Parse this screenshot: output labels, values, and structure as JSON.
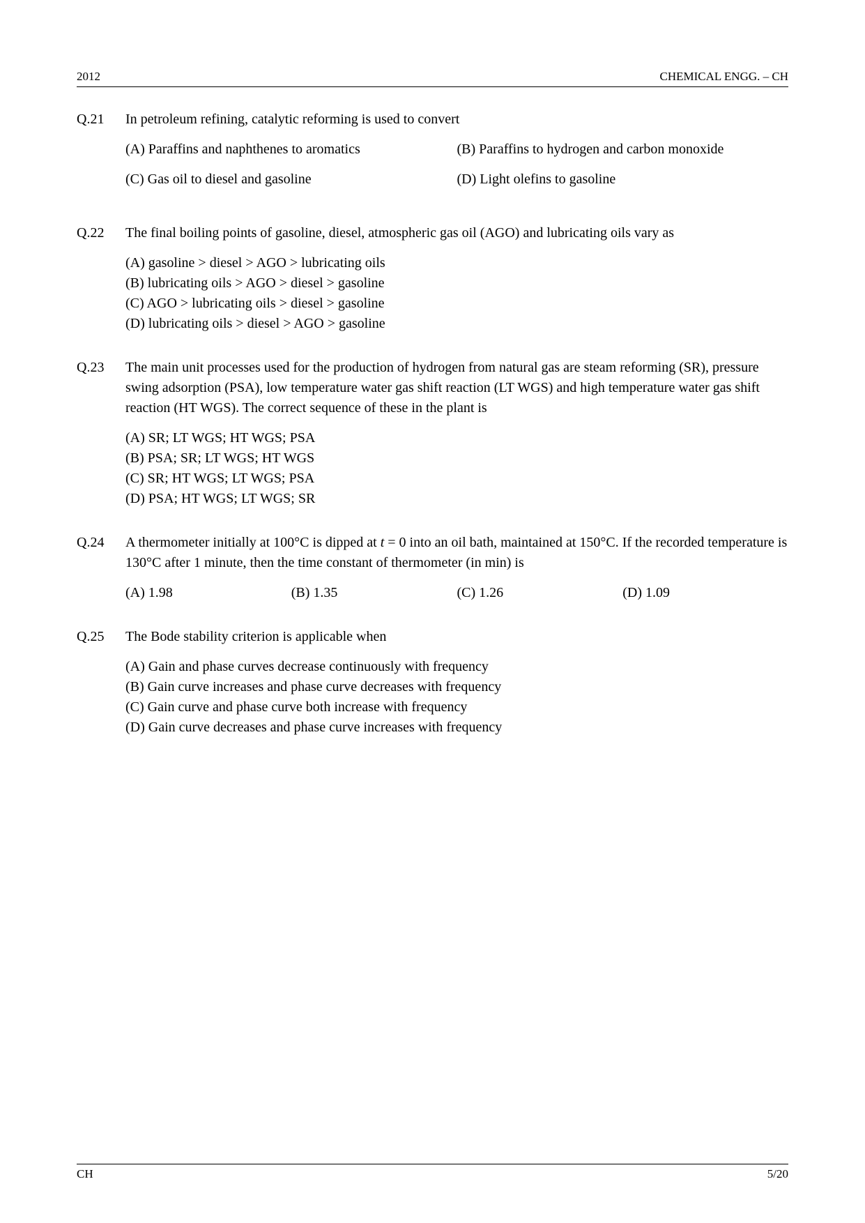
{
  "header": {
    "year": "2012",
    "subject": "CHEMICAL ENGG.  –  CH"
  },
  "footer": {
    "left": "CH",
    "right": "5/20"
  },
  "questions": {
    "q21": {
      "num": "Q.21",
      "stem": "In petroleum refining, catalytic reforming is used to convert",
      "optA": "(A) Paraffins and naphthenes to aromatics",
      "optB": "(B) Paraffins to hydrogen and carbon monoxide",
      "optC": "(C) Gas oil to diesel and gasoline",
      "optD": "(D) Light olefins to gasoline"
    },
    "q22": {
      "num": "Q.22",
      "stem": "The final boiling points of gasoline, diesel, atmospheric gas oil (AGO) and lubricating oils vary as",
      "optA": "(A) gasoline > diesel > AGO > lubricating oils",
      "optB": "(B) lubricating oils > AGO > diesel > gasoline",
      "optC": "(C) AGO > lubricating oils > diesel > gasoline",
      "optD": "(D) lubricating oils > diesel > AGO > gasoline"
    },
    "q23": {
      "num": "Q.23",
      "stem": "The main unit processes used for the production of hydrogen from natural gas are steam reforming (SR), pressure swing adsorption (PSA), low temperature water gas shift reaction (LT WGS) and high temperature water gas shift reaction (HT WGS). The correct sequence of these in the plant is",
      "optA": "(A) SR; LT WGS; HT WGS; PSA",
      "optB": "(B) PSA; SR; LT WGS; HT WGS",
      "optC": "(C) SR; HT WGS; LT WGS; PSA",
      "optD": "(D) PSA; HT WGS; LT WGS; SR"
    },
    "q24": {
      "num": "Q.24",
      "stem_pre": "A thermometer initially at 100°C is dipped at ",
      "stem_var": "t",
      "stem_post": " = 0 into an oil bath, maintained at 150°C. If the recorded temperature is 130°C after 1 minute, then the time constant of thermometer (in min) is",
      "optA": "(A) 1.98",
      "optB": "(B) 1.35",
      "optC": "(C) 1.26",
      "optD": "(D) 1.09"
    },
    "q25": {
      "num": "Q.25",
      "stem": "The Bode stability criterion is applicable when",
      "optA": "(A) Gain and phase curves decrease continuously with frequency",
      "optB": "(B) Gain curve increases and phase curve decreases with frequency",
      "optC": "(C) Gain curve and phase curve both increase with frequency",
      "optD": "(D) Gain curve decreases and phase curve increases with frequency"
    }
  }
}
